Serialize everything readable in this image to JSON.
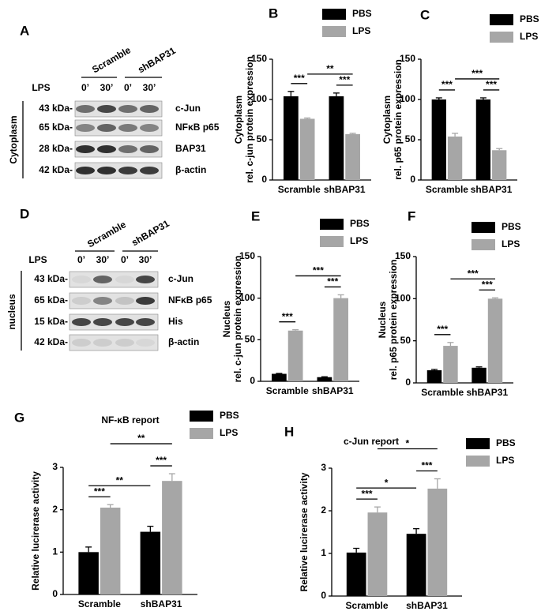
{
  "blots": [
    {
      "panel": "A",
      "groups": [
        "Scramble",
        "shBAP31"
      ],
      "treatment": "LPS",
      "lanes": [
        "0’",
        "30’",
        "0’",
        "30’"
      ],
      "fraction": "Cytoplasm",
      "rows": [
        {
          "size": "43 kDa-",
          "protein": "c-Jun"
        },
        {
          "size": "65 kDa-",
          "protein": "NFκB p65"
        },
        {
          "size": "28 kDa-",
          "protein": "BAP31"
        },
        {
          "size": "42 kDa-",
          "protein": "β-actin"
        }
      ]
    },
    {
      "panel": "D",
      "groups": [
        "Scramble",
        "shBAP31"
      ],
      "treatment": "LPS",
      "lanes": [
        "0’",
        "30’",
        "0’",
        "30’"
      ],
      "fraction": "nucleus",
      "rows": [
        {
          "size": "43 kDa-",
          "protein": "c-Jun"
        },
        {
          "size": "65 kDa-",
          "protein": "NFκB p65"
        },
        {
          "size": "15 kDa-",
          "protein": "His"
        },
        {
          "size": "42 kDa-",
          "protein": "β-actin"
        }
      ]
    }
  ],
  "chart_data": [
    {
      "type": "bar",
      "panel": "B",
      "ylabel": [
        "Cytoplasm",
        "rel. c-jun protein expression"
      ],
      "categories": [
        "Scramble",
        "shBAP31"
      ],
      "series": [
        {
          "name": "PBS",
          "color": "#000000",
          "values": [
            104,
            104
          ],
          "errors": [
            6,
            4
          ]
        },
        {
          "name": "LPS",
          "color": "#a6a6a6",
          "values": [
            76,
            57
          ],
          "errors": [
            1,
            1
          ]
        }
      ],
      "ylim": [
        0,
        150
      ],
      "yticks": [
        0,
        50,
        100,
        150
      ],
      "annotations": [
        "***",
        "***",
        "**"
      ]
    },
    {
      "type": "bar",
      "panel": "C",
      "ylabel": [
        "Cytoplasm",
        "rel. p65 protein expression"
      ],
      "categories": [
        "Scramble",
        "shBAP31"
      ],
      "series": [
        {
          "name": "PBS",
          "color": "#000000",
          "values": [
            100,
            100
          ],
          "errors": [
            2,
            2
          ]
        },
        {
          "name": "LPS",
          "color": "#a6a6a6",
          "values": [
            54,
            37
          ],
          "errors": [
            4,
            2
          ]
        }
      ],
      "ylim": [
        0,
        150
      ],
      "yticks": [
        0,
        50,
        100,
        150
      ],
      "annotations": [
        "***",
        "***",
        "***"
      ]
    },
    {
      "type": "bar",
      "panel": "E",
      "ylabel": [
        "Nucleus",
        "rel. c-jun protein expression"
      ],
      "categories": [
        "Scramble",
        "shBAP31"
      ],
      "series": [
        {
          "name": "PBS",
          "color": "#000000",
          "values": [
            9,
            5
          ],
          "errors": [
            0.5,
            0.5
          ]
        },
        {
          "name": "LPS",
          "color": "#a6a6a6",
          "values": [
            61,
            100
          ],
          "errors": [
            1,
            4
          ]
        }
      ],
      "ylim": [
        0,
        150
      ],
      "yticks": [
        0,
        50,
        100,
        150
      ],
      "annotations": [
        "***",
        "***",
        "***"
      ]
    },
    {
      "type": "bar",
      "panel": "F",
      "ylabel": [
        "Nucleus",
        "rel. p65 protein expression"
      ],
      "categories": [
        "Scramble",
        "shBAP31"
      ],
      "series": [
        {
          "name": "PBS",
          "color": "#000000",
          "values": [
            15,
            18
          ],
          "errors": [
            1,
            1
          ]
        },
        {
          "name": "LPS",
          "color": "#a6a6a6",
          "values": [
            44,
            100
          ],
          "errors": [
            4,
            1
          ]
        }
      ],
      "ylim": [
        0,
        150
      ],
      "yticks": [
        0,
        50,
        100,
        150
      ],
      "annotations": [
        "***",
        "***",
        "***"
      ]
    },
    {
      "type": "bar",
      "panel": "G",
      "title": "NF-κB report",
      "ylabel": [
        "Relative lucirerase activity"
      ],
      "categories": [
        "Scramble",
        "shBAP31"
      ],
      "series": [
        {
          "name": "PBS",
          "color": "#000000",
          "values": [
            1.0,
            1.48
          ],
          "errors": [
            0.12,
            0.13
          ]
        },
        {
          "name": "LPS",
          "color": "#a6a6a6",
          "values": [
            2.05,
            2.68
          ],
          "errors": [
            0.07,
            0.17
          ]
        }
      ],
      "ylim": [
        0,
        3
      ],
      "yticks": [
        0,
        1,
        2,
        3
      ],
      "annotations": [
        "***",
        "**",
        "***",
        "**"
      ]
    },
    {
      "type": "bar",
      "panel": "H",
      "title": "c-Jun report",
      "ylabel": [
        "Relative lucirerase activity"
      ],
      "categories": [
        "Scramble",
        "shBAP31"
      ],
      "series": [
        {
          "name": "PBS",
          "color": "#000000",
          "values": [
            1.02,
            1.46
          ],
          "errors": [
            0.1,
            0.12
          ]
        },
        {
          "name": "LPS",
          "color": "#a6a6a6",
          "values": [
            1.96,
            2.52
          ],
          "errors": [
            0.13,
            0.23
          ]
        }
      ],
      "ylim": [
        0,
        3
      ],
      "yticks": [
        0,
        1,
        2,
        3
      ],
      "annotations": [
        "***",
        "*",
        "***",
        "*"
      ]
    }
  ]
}
